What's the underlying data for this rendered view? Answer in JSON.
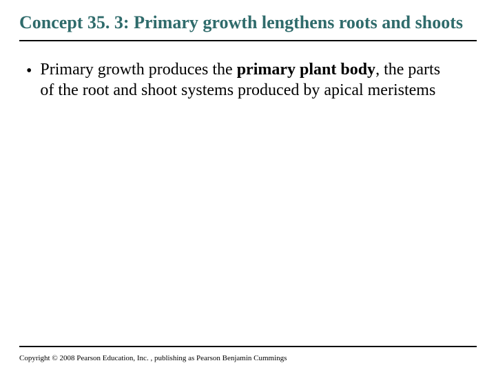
{
  "title": "Concept 35. 3: Primary growth lengthens roots and shoots",
  "title_color": "#2f6b6b",
  "rule_color": "#000000",
  "background_color": "#ffffff",
  "title_fontsize": 26,
  "body_fontsize": 24,
  "bullet": {
    "mark": "•",
    "pre": "Primary growth produces the ",
    "bold": "primary plant body",
    "post": ", the parts of the root and shoot systems produced by apical meristems"
  },
  "copyright": "Copyright © 2008 Pearson Education, Inc. , publishing as Pearson Benjamin Cummings",
  "copyright_fontsize": 11
}
